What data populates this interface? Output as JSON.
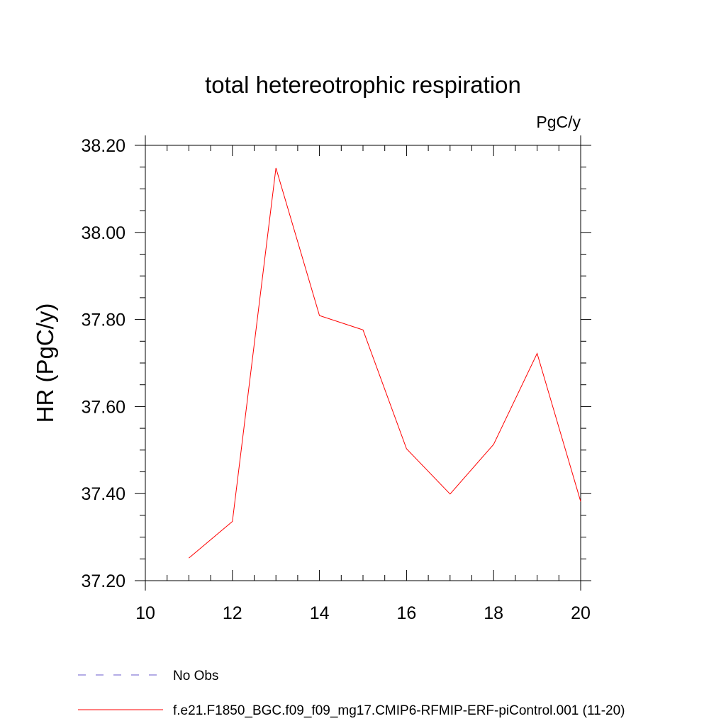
{
  "chart_data": {
    "type": "line",
    "title": "total hetereotrophic respiration",
    "units": "PgC/y",
    "xlabel": "",
    "ylabel": "HR  (PgC/y)",
    "xlim": [
      10,
      20
    ],
    "ylim": [
      37.2,
      38.2
    ],
    "x_ticks": [
      "10",
      "12",
      "14",
      "16",
      "18",
      "20"
    ],
    "y_ticks": [
      "37.20",
      "37.40",
      "37.60",
      "37.80",
      "38.00",
      "38.20"
    ],
    "grid": false,
    "series": [
      {
        "name": "f.e21.F1850_BGC.f09_f09_mg17.CMIP6-RFMIP-ERF-piControl.001 (11-20)",
        "color": "#ff0000",
        "style": "solid",
        "x": [
          11,
          12,
          13,
          14,
          15,
          16,
          17,
          18,
          19,
          20
        ],
        "y": [
          37.252,
          37.336,
          38.148,
          37.809,
          37.776,
          37.503,
          37.399,
          37.513,
          37.722,
          37.382
        ]
      }
    ],
    "legend": [
      {
        "label": "No Obs",
        "color": "#6a5acd",
        "style": "dashed"
      },
      {
        "label": "f.e21.F1850_BGC.f09_f09_mg17.CMIP6-RFMIP-ERF-piControl.001 (11-20)",
        "color": "#ff0000",
        "style": "solid"
      }
    ],
    "legend_position": "bottom-left"
  }
}
